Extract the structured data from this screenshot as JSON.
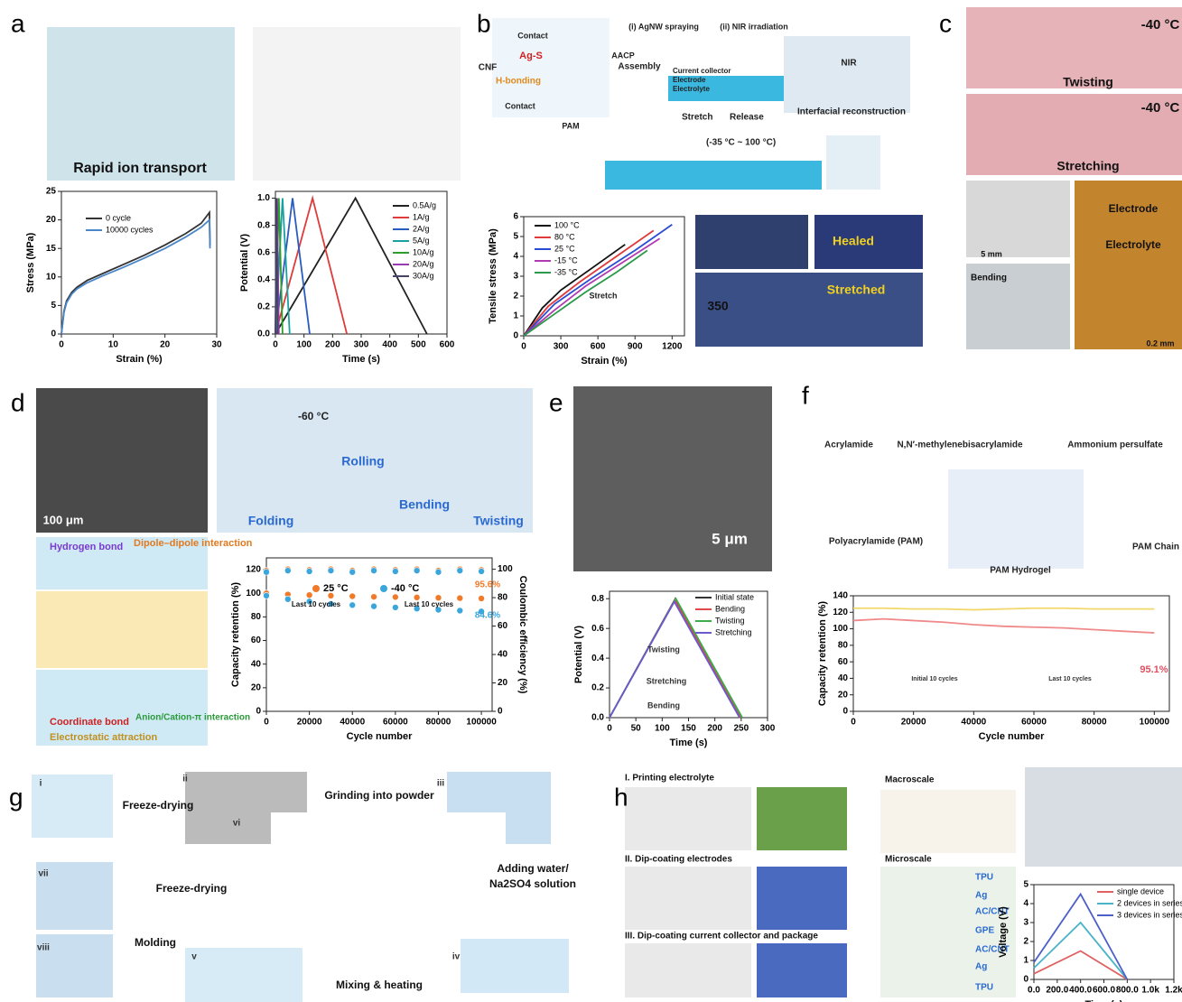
{
  "panels": {
    "a": {
      "letter": "a",
      "labels": [
        "Rapid ion transport"
      ]
    },
    "b": {
      "letter": "b",
      "labels": [
        "Contact",
        "Ag-S",
        "CNF",
        "H-bonding",
        "Contact",
        "AACP",
        "(i) AgNW spraying",
        "(ii) NIR irradiation",
        "Assembly",
        "Current collector",
        "Electrode",
        "Electrolyte",
        "NIR",
        "Interfacial reconstruction",
        "Stretch",
        "Release",
        "PAM",
        "(-35 °C ~ 100 °C)",
        "Healed",
        "Stretched",
        "350"
      ]
    },
    "c": {
      "letter": "c",
      "labels": [
        "-40 °C",
        "Twisting",
        "-40 °C",
        "Stretching",
        "5 mm",
        "Electrode",
        "Electrolyte",
        "Bending",
        "0.2 mm"
      ]
    },
    "d": {
      "letter": "d",
      "labels": [
        "100 μm",
        "-60 °C",
        "Folding",
        "Rolling",
        "Bending",
        "Twisting",
        "Hydrogen bond",
        "Dipole–dipole interaction",
        "Coordinate bond",
        "Anion/Cation-π interaction",
        "Electrostatic attraction"
      ]
    },
    "e": {
      "letter": "e",
      "labels": [
        "5 μm"
      ]
    },
    "f": {
      "letter": "f",
      "labels": [
        "Acrylamide",
        "N,N′-methylenebisacrylamide",
        "Ammonium persulfate",
        "Polyacrylamide (PAM)",
        "PAM Hydrogel",
        "PAM Chain"
      ]
    },
    "g": {
      "letter": "g",
      "labels": [
        "Freeze-drying",
        "Grinding into powder",
        "Adding water/",
        "Na2SO4 solution",
        "Mixing & heating",
        "Molding",
        "Freeze-drying",
        "i",
        "ii",
        "iii",
        "iv",
        "v",
        "vi",
        "vii",
        "viii"
      ]
    },
    "h": {
      "letter": "h",
      "labels": [
        "I. Printing electrolyte",
        "II. Dip-coating electrodes",
        "III. Dip-coating current collector and package",
        "Macroscale",
        "Microscale",
        "TPU",
        "Ag",
        "AC/CNT",
        "GPE",
        "AC/CNT",
        "Ag",
        "TPU"
      ]
    }
  },
  "chart_data": [
    {
      "type": "line",
      "xlabel": "Strain (%)",
      "ylabel": "Stress (MPa)",
      "xlim": [
        0,
        30
      ],
      "ylim": [
        0,
        25
      ],
      "xticks": [
        0,
        10,
        20,
        30
      ],
      "yticks": [
        0,
        5,
        10,
        15,
        20,
        25
      ],
      "series": [
        {
          "name": "0 cycle",
          "color": "#333333",
          "x": [
            0,
            0.5,
            1,
            2,
            3,
            5,
            8,
            12,
            16,
            20,
            24,
            27,
            28.6,
            28.7
          ],
          "values": [
            0,
            4,
            5.8,
            7.3,
            8.2,
            9.4,
            10.6,
            12.2,
            13.8,
            15.6,
            17.6,
            19.4,
            21.3,
            15.5
          ]
        },
        {
          "name": "10000 cycles",
          "color": "#4a86c8",
          "x": [
            0,
            0.5,
            1,
            2,
            3,
            5,
            8,
            12,
            16,
            20,
            24,
            27,
            28.6,
            28.7
          ],
          "values": [
            0,
            3.8,
            5.5,
            7,
            7.9,
            9,
            10.2,
            11.7,
            13.3,
            15,
            17,
            18.7,
            20,
            15
          ]
        }
      ]
    },
    {
      "type": "line",
      "xlabel": "Time (s)",
      "ylabel": "Potential (V)",
      "xlim": [
        0,
        600
      ],
      "ylim": [
        0,
        1.05
      ],
      "xticks": [
        0,
        100,
        200,
        300,
        400,
        500,
        600
      ],
      "yticks": [
        {
          "value": 0,
          "label": "0.0"
        },
        0.2,
        0.4,
        0.6,
        0.8,
        {
          "value": 1,
          "label": "1.0"
        }
      ],
      "series": [
        {
          "name": "0.5A/g",
          "color": "#222222",
          "x": [
            0,
            280,
            530
          ],
          "values": [
            0,
            1,
            0
          ]
        },
        {
          "name": "1A/g",
          "color": "#e03a3a",
          "x": [
            0,
            130,
            250
          ],
          "values": [
            0,
            1,
            0
          ]
        },
        {
          "name": "2A/g",
          "color": "#2a5cc0",
          "x": [
            0,
            60,
            120
          ],
          "values": [
            0,
            1,
            0
          ]
        },
        {
          "name": "5A/g",
          "color": "#1aa0a0",
          "x": [
            0,
            25,
            50
          ],
          "values": [
            0,
            1,
            0
          ]
        },
        {
          "name": "10A/g",
          "color": "#2aa02a",
          "x": [
            0,
            12,
            25
          ],
          "values": [
            0,
            1,
            0
          ]
        },
        {
          "name": "20A/g",
          "color": "#9a3ab0",
          "x": [
            0,
            6,
            12
          ],
          "values": [
            0,
            1,
            0
          ]
        },
        {
          "name": "30A/g",
          "color": "#444466",
          "x": [
            0,
            4,
            8
          ],
          "values": [
            0,
            1,
            0
          ]
        }
      ]
    },
    {
      "type": "line",
      "xlabel": "Strain (%)",
      "ylabel": "Tensile stress (MPa)",
      "xlim": [
        0,
        1300
      ],
      "ylim": [
        0,
        6
      ],
      "xticks": [
        0,
        300,
        600,
        900,
        1200
      ],
      "yticks": [
        0,
        1,
        2,
        3,
        4,
        5,
        6
      ],
      "annotations": [
        "Stretch"
      ],
      "series": [
        {
          "name": "100 °C",
          "color": "#111111",
          "x": [
            0,
            150,
            300,
            550,
            820
          ],
          "values": [
            0,
            1.4,
            2.3,
            3.4,
            4.6
          ]
        },
        {
          "name": "80 °C",
          "color": "#e03a3a",
          "x": [
            0,
            200,
            450,
            750,
            1050
          ],
          "values": [
            0,
            1.5,
            2.7,
            4,
            5.3
          ]
        },
        {
          "name": "25 °C",
          "color": "#2a4cd0",
          "x": [
            0,
            250,
            550,
            900,
            1200
          ],
          "values": [
            0,
            1.6,
            2.9,
            4.3,
            5.6
          ]
        },
        {
          "name": "-15 °C",
          "color": "#b03ab0",
          "x": [
            0,
            250,
            500,
            800,
            1100
          ],
          "values": [
            0,
            1.3,
            2.5,
            3.7,
            4.9
          ]
        },
        {
          "name": "-35 °C",
          "color": "#2a9a4a",
          "x": [
            0,
            250,
            500,
            750,
            1000
          ],
          "values": [
            0,
            1.1,
            2.2,
            3.2,
            4.3
          ]
        }
      ]
    },
    {
      "type": "scatter",
      "xlabel": "Cycle number",
      "ylabel": "Capacity retention (%)",
      "y2label": "Coulombic efficiency (%)",
      "xlim": [
        0,
        105000
      ],
      "ylim": [
        0,
        130
      ],
      "y2lim": [
        0,
        108
      ],
      "xticks": [
        0,
        20000,
        40000,
        60000,
        80000,
        100000
      ],
      "yticks": [
        0,
        20,
        40,
        60,
        80,
        100,
        120
      ],
      "y2ticks": [
        0,
        20,
        40,
        60,
        80,
        100
      ],
      "annotations": [
        "95.6%",
        "84.6%",
        "Last 10 cycles",
        "Last 10 cycles"
      ],
      "x": [
        0,
        10000,
        20000,
        30000,
        40000,
        50000,
        60000,
        70000,
        80000,
        90000,
        100000
      ],
      "series": [
        {
          "name": "25 °C",
          "color": "#f07a2a",
          "values": [
            100,
            99,
            98.5,
            98,
            97.5,
            97,
            96.8,
            96.5,
            96.2,
            95.9,
            95.6
          ]
        },
        {
          "name": "-40 °C",
          "color": "#3aa6dc",
          "values": [
            98,
            95,
            93,
            91,
            90,
            89,
            88,
            87,
            86,
            85.3,
            84.6
          ]
        },
        {
          "color": "#f07a2a",
          "axis": "y2",
          "values": [
            99,
            100,
            99.5,
            100,
            99,
            100,
            99.5,
            100,
            99,
            100,
            99.5
          ]
        },
        {
          "color": "#3aa6dc",
          "axis": "y2",
          "values": [
            98,
            99,
            98.5,
            99,
            98,
            99,
            98.5,
            99,
            98,
            99,
            98.5
          ]
        }
      ]
    },
    {
      "type": "line",
      "xlabel": "Time (s)",
      "ylabel": "Potential (V)",
      "xlim": [
        0,
        300
      ],
      "ylim": [
        0,
        0.85
      ],
      "xticks": [
        0,
        50,
        100,
        150,
        200,
        250,
        300
      ],
      "yticks": [
        {
          "value": 0,
          "label": "0.0"
        },
        0.2,
        0.4,
        0.6,
        0.8
      ],
      "annotations": [
        "Twisting",
        "Stretching",
        "Bending"
      ],
      "series": [
        {
          "name": "Initial state",
          "color": "#333333",
          "x": [
            0,
            125,
            250
          ],
          "values": [
            0,
            0.8,
            0
          ]
        },
        {
          "name": "Bending",
          "color": "#e04a4a",
          "x": [
            0,
            124,
            249
          ],
          "values": [
            0,
            0.79,
            0
          ]
        },
        {
          "name": "Twisting",
          "color": "#3ab04a",
          "x": [
            0,
            126,
            252
          ],
          "values": [
            0,
            0.8,
            0
          ]
        },
        {
          "name": "Stretching",
          "color": "#6a5ad0",
          "x": [
            0,
            123,
            247
          ],
          "values": [
            0,
            0.78,
            0
          ]
        }
      ]
    },
    {
      "type": "line",
      "xlabel": "Cycle number",
      "ylabel": "Capacity retention (%)",
      "xlim": [
        0,
        105000
      ],
      "ylim": [
        0,
        140
      ],
      "xticks": [
        0,
        20000,
        40000,
        60000,
        80000,
        100000
      ],
      "yticks": [
        0,
        20,
        40,
        60,
        80,
        100,
        120,
        140
      ],
      "annotations": [
        "95.1%",
        "Initial 10 cycles",
        "Last 10 cycles"
      ],
      "x": [
        0,
        10000,
        20000,
        30000,
        40000,
        50000,
        60000,
        70000,
        80000,
        90000,
        100000
      ],
      "series": [
        {
          "color": "#f08a8a",
          "values": [
            110,
            112,
            110,
            108,
            105,
            103,
            102,
            101,
            99,
            97,
            95.1
          ]
        },
        {
          "color": "#f2d86a",
          "values": [
            125,
            125,
            124,
            124,
            123,
            124,
            125,
            125,
            124,
            124,
            124
          ]
        }
      ]
    },
    {
      "type": "line",
      "xlabel": "Time (s)",
      "ylabel": "Voltage (V)",
      "xlim": [
        0,
        1200
      ],
      "ylim": [
        0,
        5
      ],
      "xticks": [
        {
          "value": 0,
          "label": "0.0"
        },
        {
          "value": 200,
          "label": "200.0"
        },
        {
          "value": 400,
          "label": "400.0"
        },
        {
          "value": 600,
          "label": "600.0"
        },
        {
          "value": 800,
          "label": "800.0"
        },
        {
          "value": 1000,
          "label": "1.0k"
        },
        {
          "value": 1200,
          "label": "1.2k"
        }
      ],
      "yticks": [
        0,
        1,
        2,
        3,
        4,
        5
      ],
      "series": [
        {
          "name": "single device",
          "color": "#e06060",
          "x": [
            0,
            400,
            800
          ],
          "values": [
            0.3,
            1.5,
            0
          ]
        },
        {
          "name": "2 devices in series",
          "color": "#4bb3c8",
          "x": [
            0,
            400,
            800
          ],
          "values": [
            0.6,
            3,
            0
          ]
        },
        {
          "name": "3 devices in series",
          "color": "#4b5fc8",
          "x": [
            0,
            400,
            800
          ],
          "values": [
            0.9,
            4.5,
            0
          ]
        }
      ]
    }
  ]
}
